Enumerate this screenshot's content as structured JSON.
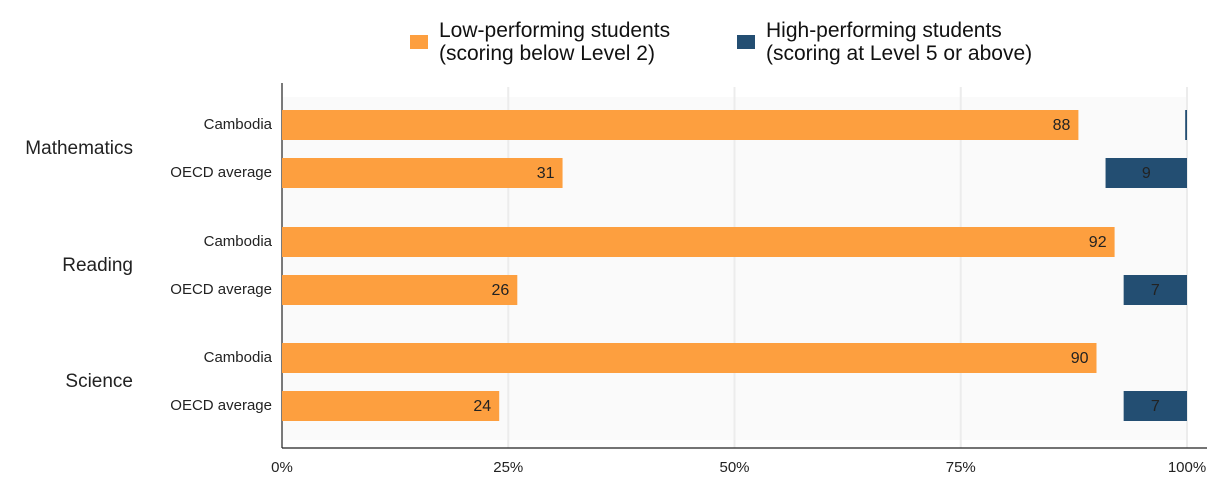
{
  "chart_data": {
    "type": "bar",
    "orientation": "horizontal",
    "groups": [
      {
        "name": "Mathematics",
        "size": 2
      },
      {
        "name": "Reading",
        "size": 2
      },
      {
        "name": "Science",
        "size": 2
      }
    ],
    "categories": [
      "Cambodia",
      "OECD average",
      "Cambodia",
      "OECD average",
      "Cambodia",
      "OECD average"
    ],
    "series": [
      {
        "name": "Low-performing students\n(scoring below Level 2)",
        "color": "#fd9f3f",
        "anchor": "left",
        "values": [
          88,
          31,
          92,
          26,
          90,
          24
        ]
      },
      {
        "name": "High-performing students\n(scoring at Level 5 or above)",
        "color": "#234e72",
        "anchor": "right",
        "values": [
          0.2,
          9,
          0,
          7,
          0,
          7
        ],
        "value_labels": [
          null,
          "9",
          null,
          "7",
          null,
          "7"
        ]
      }
    ],
    "xlim": [
      0,
      100
    ],
    "xticks": [
      {
        "value": 0,
        "label": "0%"
      },
      {
        "value": 25,
        "label": "25%"
      },
      {
        "value": 50,
        "label": "50%"
      },
      {
        "value": 75,
        "label": "75%"
      },
      {
        "value": 100,
        "label": "100%"
      }
    ],
    "grid": true
  }
}
